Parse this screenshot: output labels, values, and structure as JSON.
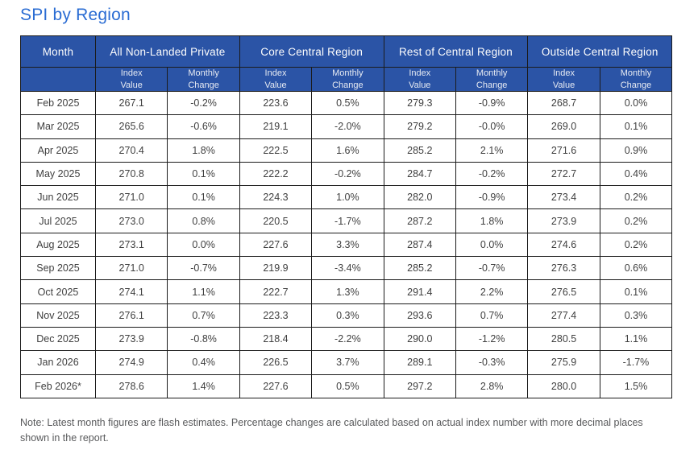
{
  "title": "SPI by Region",
  "note": "Note: Latest month figures are flash estimates. Percentage changes are calculated based on actual index number with more decimal places shown in the report.",
  "colors": {
    "header_bg": "#2b54a6",
    "title_blue": "#2a6cd3",
    "table_border": "#1b1b1b",
    "data_text": "#3f3f3f",
    "note_text": "#58595b"
  },
  "chart_data": {
    "type": "table",
    "title": "SPI by Region",
    "header": {
      "month": "Month",
      "groups": [
        "All Non-Landed Private",
        "Core Central Region",
        "Rest of Central Region",
        "Outside Central Region"
      ],
      "sub_index": "Index\nValue",
      "sub_change": "Monthly\nChange"
    },
    "rows": [
      {
        "month": "Feb 2025",
        "values": [
          "267.1",
          "-0.2%",
          "223.6",
          "0.5%",
          "279.3",
          "-0.9%",
          "268.7",
          "0.0%"
        ]
      },
      {
        "month": "Mar 2025",
        "values": [
          "265.6",
          "-0.6%",
          "219.1",
          "-2.0%",
          "279.2",
          "-0.0%",
          "269.0",
          "0.1%"
        ]
      },
      {
        "month": "Apr 2025",
        "values": [
          "270.4",
          "1.8%",
          "222.5",
          "1.6%",
          "285.2",
          "2.1%",
          "271.6",
          "0.9%"
        ]
      },
      {
        "month": "May 2025",
        "values": [
          "270.8",
          "0.1%",
          "222.2",
          "-0.2%",
          "284.7",
          "-0.2%",
          "272.7",
          "0.4%"
        ]
      },
      {
        "month": "Jun 2025",
        "values": [
          "271.0",
          "0.1%",
          "224.3",
          "1.0%",
          "282.0",
          "-0.9%",
          "273.4",
          "0.2%"
        ]
      },
      {
        "month": "Jul 2025",
        "values": [
          "273.0",
          "0.8%",
          "220.5",
          "-1.7%",
          "287.2",
          "1.8%",
          "273.9",
          "0.2%"
        ]
      },
      {
        "month": "Aug 2025",
        "values": [
          "273.1",
          "0.0%",
          "227.6",
          "3.3%",
          "287.4",
          "0.0%",
          "274.6",
          "0.2%"
        ]
      },
      {
        "month": "Sep 2025",
        "values": [
          "271.0",
          "-0.7%",
          "219.9",
          "-3.4%",
          "285.2",
          "-0.7%",
          "276.3",
          "0.6%"
        ]
      },
      {
        "month": "Oct 2025",
        "values": [
          "274.1",
          "1.1%",
          "222.7",
          "1.3%",
          "291.4",
          "2.2%",
          "276.5",
          "0.1%"
        ]
      },
      {
        "month": "Nov 2025",
        "values": [
          "276.1",
          "0.7%",
          "223.3",
          "0.3%",
          "293.6",
          "0.7%",
          "277.4",
          "0.3%"
        ]
      },
      {
        "month": "Dec 2025",
        "values": [
          "273.9",
          "-0.8%",
          "218.4",
          "-2.2%",
          "290.0",
          "-1.2%",
          "280.5",
          "1.1%"
        ]
      },
      {
        "month": "Jan 2026",
        "values": [
          "274.9",
          "0.4%",
          "226.5",
          "3.7%",
          "289.1",
          "-0.3%",
          "275.9",
          "-1.7%"
        ]
      },
      {
        "month": "Feb 2026*",
        "values": [
          "278.6",
          "1.4%",
          "227.6",
          "0.5%",
          "297.2",
          "2.8%",
          "280.0",
          "1.5%"
        ]
      }
    ]
  }
}
